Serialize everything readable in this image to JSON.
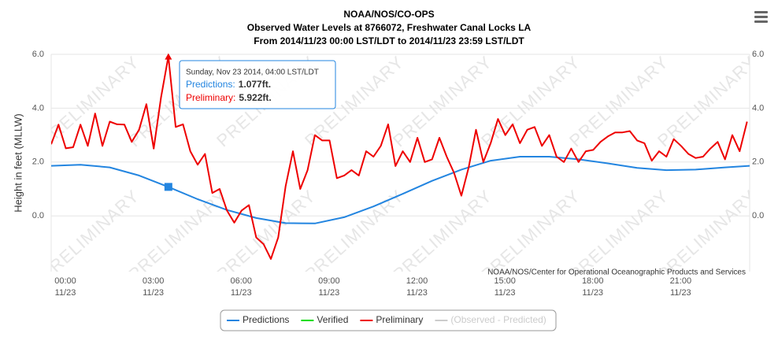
{
  "chart_data": {
    "type": "line",
    "title": [
      "NOAA/NOS/CO-OPS",
      "Observed Water Levels at 8766072, Freshwater Canal Locks LA",
      "From 2014/11/23 00:00 LST/LDT to 2014/11/23 23:59 LST/LDT"
    ],
    "ylabel": "Height in feet (MLLW)",
    "credit": "NOAA/NOS/Center for Operational Oceanographic Products and Services",
    "watermark": "PRELIMINARY",
    "xlim": [
      0,
      23.84
    ],
    "xticks": [
      {
        "value": 0,
        "label": "00:00"
      },
      {
        "value": 3,
        "label": "03:00"
      },
      {
        "value": 6,
        "label": "06:00"
      },
      {
        "value": 9,
        "label": "09:00"
      },
      {
        "value": 12,
        "label": "12:00"
      },
      {
        "value": 15,
        "label": "15:00"
      },
      {
        "value": 18,
        "label": "18:00"
      },
      {
        "value": 21,
        "label": "21:00"
      }
    ],
    "x_tick_sublabels": [
      "11/23",
      "11/23",
      "11/23",
      "11/23",
      "11/23",
      "11/23",
      "11/23",
      "11/23"
    ],
    "ylim": [
      -2.07,
      6.0
    ],
    "yticks": [
      {
        "value": 0,
        "label": "0.0"
      },
      {
        "value": 2,
        "label": "2.0"
      },
      {
        "value": 4,
        "label": "4.0"
      },
      {
        "value": 6,
        "label": "6.0"
      }
    ],
    "grid": true,
    "series": [
      {
        "name": "Predictions",
        "color": "#2385e0",
        "marker": "square",
        "x": [
          0,
          1,
          2,
          3,
          4,
          5,
          6,
          7,
          8,
          9,
          10,
          11,
          12,
          13,
          14,
          15,
          16,
          17,
          18,
          19,
          20,
          21,
          22,
          23,
          23.84
        ],
        "values": [
          1.86,
          1.9,
          1.8,
          1.5,
          1.077,
          0.62,
          0.22,
          -0.08,
          -0.27,
          -0.28,
          -0.05,
          0.35,
          0.82,
          1.3,
          1.72,
          2.05,
          2.2,
          2.2,
          2.1,
          1.95,
          1.78,
          1.7,
          1.72,
          1.8,
          1.86
        ]
      },
      {
        "name": "Verified",
        "color": "#00dd00",
        "x": [],
        "values": []
      },
      {
        "name": "Preliminary",
        "color": "#ee0000",
        "marker": "triangle",
        "x": [
          0,
          0.25,
          0.5,
          0.75,
          1,
          1.25,
          1.5,
          1.75,
          2,
          2.25,
          2.5,
          2.75,
          3,
          3.25,
          3.5,
          3.75,
          4,
          4.25,
          4.5,
          4.75,
          5,
          5.25,
          5.5,
          5.75,
          6,
          6.25,
          6.5,
          6.75,
          7,
          7.25,
          7.5,
          7.75,
          8,
          8.25,
          8.5,
          8.75,
          9,
          9.25,
          9.5,
          9.75,
          10,
          10.25,
          10.5,
          10.75,
          11,
          11.25,
          11.5,
          11.75,
          12,
          12.25,
          12.5,
          12.75,
          13,
          13.25,
          13.5,
          13.75,
          14,
          14.25,
          14.5,
          14.75,
          15,
          15.25,
          15.5,
          15.75,
          16,
          16.25,
          16.5,
          16.75,
          17,
          17.25,
          17.5,
          17.75,
          18,
          18.25,
          18.5,
          18.75,
          19,
          19.25,
          19.5,
          19.75,
          20,
          20.25,
          20.5,
          20.75,
          21,
          21.25,
          21.5,
          21.75,
          22,
          22.25,
          22.5,
          22.75,
          23,
          23.25,
          23.5,
          23.75
        ],
        "values": [
          2.66,
          3.39,
          2.51,
          2.55,
          3.39,
          2.6,
          3.8,
          2.6,
          3.5,
          3.4,
          3.39,
          2.75,
          3.2,
          4.15,
          2.5,
          4.4,
          5.922,
          3.3,
          3.4,
          2.4,
          1.9,
          2.3,
          0.85,
          1.0,
          0.2,
          -0.25,
          0.2,
          0.4,
          -0.8,
          -1.05,
          -1.6,
          -0.8,
          1.1,
          2.4,
          1.0,
          1.7,
          3.0,
          2.8,
          2.8,
          1.4,
          1.5,
          1.7,
          1.5,
          2.4,
          2.2,
          2.6,
          3.4,
          1.85,
          2.4,
          2.0,
          2.9,
          2.0,
          2.1,
          2.9,
          2.2,
          1.6,
          0.75,
          1.8,
          3.2,
          2.0,
          2.7,
          3.6,
          3.0,
          3.4,
          2.7,
          3.2,
          3.3,
          2.6,
          3.0,
          2.2,
          2.0,
          2.5,
          2.0,
          2.4,
          2.45,
          2.75,
          2.95,
          3.1,
          3.1,
          3.15,
          2.8,
          2.7,
          2.05,
          2.4,
          2.2,
          2.85,
          2.6,
          2.3,
          2.15,
          2.2,
          2.5,
          2.75,
          2.1,
          3.0,
          2.4,
          3.5
        ]
      },
      {
        "name": "(Observed - Predicted)",
        "color": "#cccccc",
        "visible": false,
        "x": [],
        "values": []
      }
    ],
    "tooltip": {
      "x": 4,
      "title": "Sunday, Nov 23 2014, 04:00 LST/LDT",
      "items": [
        {
          "name": "Predictions:",
          "value_label": "1.077ft."
        },
        {
          "name": "Preliminary:",
          "value_label": "5.922ft."
        }
      ]
    }
  }
}
